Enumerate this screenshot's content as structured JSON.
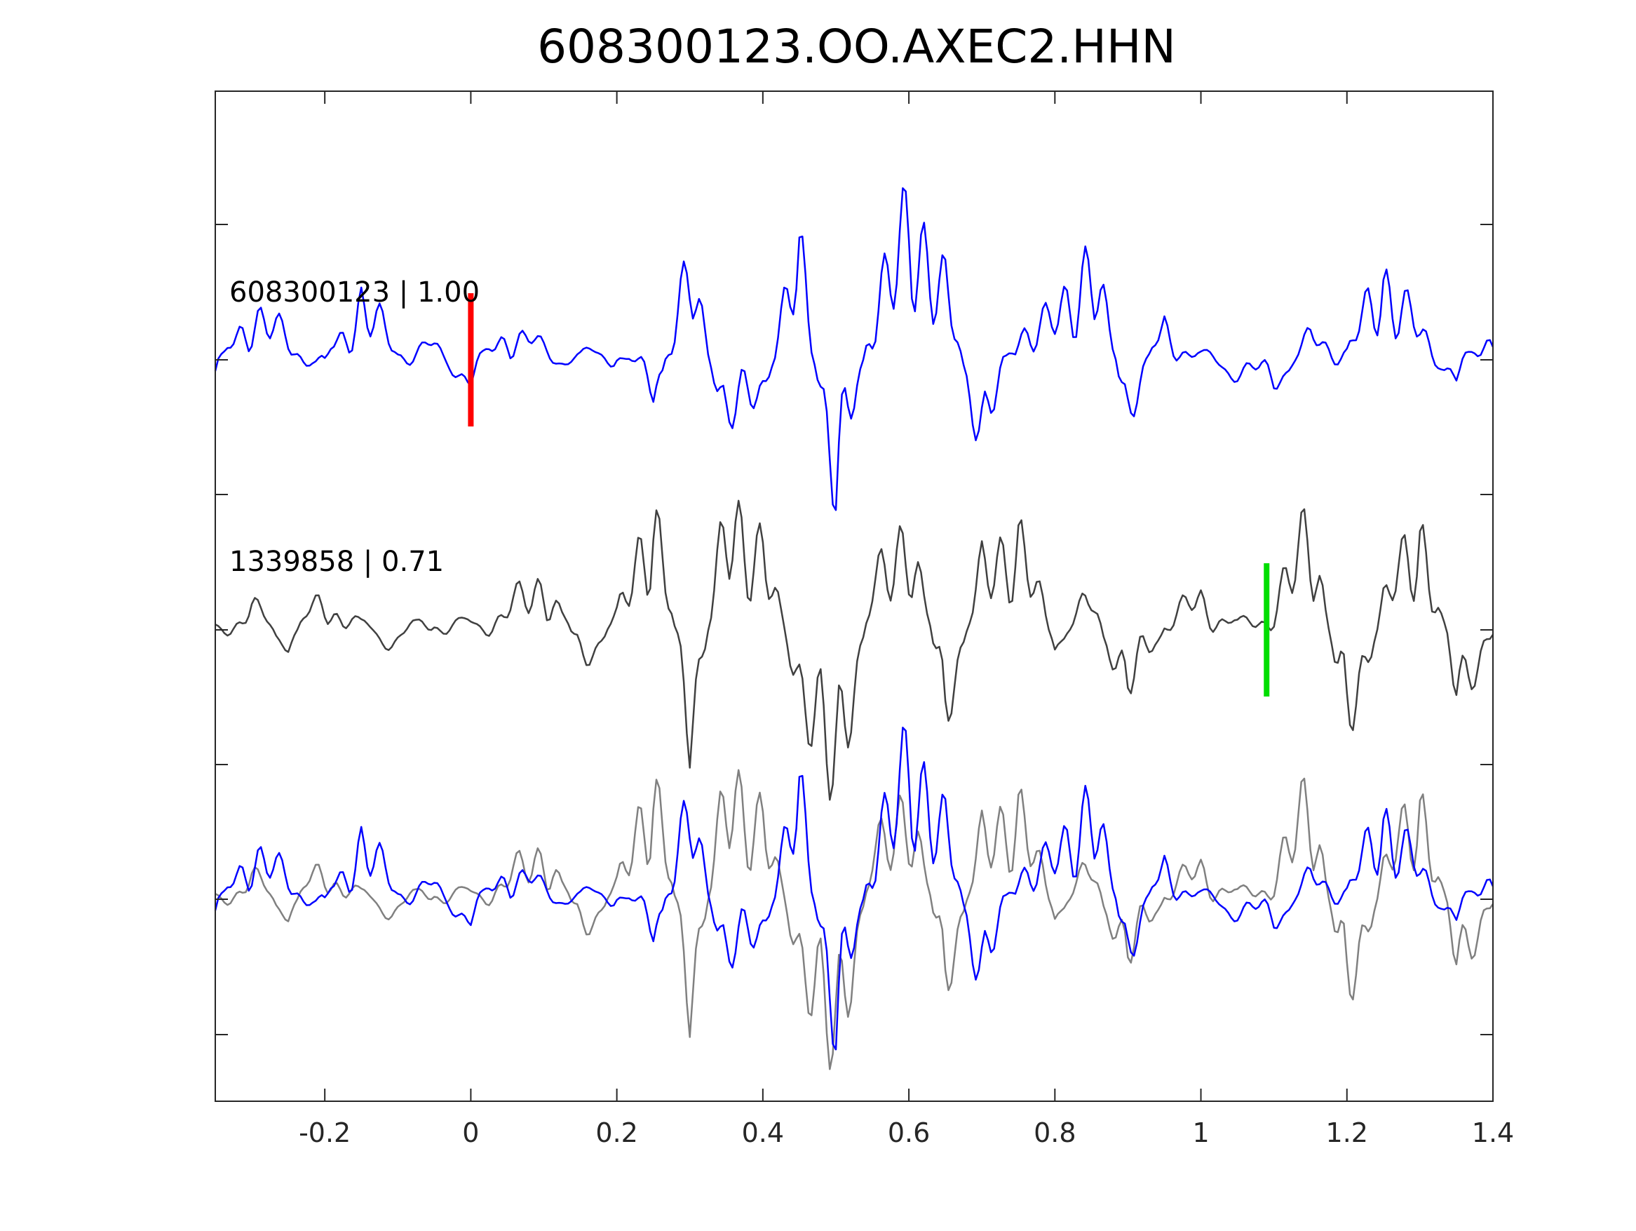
{
  "chart_data": {
    "type": "line",
    "title": "608300123.OO.AXEC2.HHN",
    "xlim": [
      -0.35,
      1.4
    ],
    "x_ticks": [
      -0.2,
      0,
      0.2,
      0.4,
      0.6,
      0.8,
      1,
      1.2,
      1.4
    ],
    "x_tick_labels": [
      "-0.2",
      "0",
      "0.2",
      "0.4",
      "0.6",
      "0.8",
      "1",
      "1.2",
      "1.4"
    ],
    "y_tick_labels": [],
    "grid": false,
    "traces": [
      {
        "id": "608300123",
        "label": "608300123 | 1.00",
        "color": "#0000ff"
      },
      {
        "id": "1339858",
        "label": "1339858 | 0.71",
        "color": "#404040"
      }
    ],
    "overlay": {
      "colors": [
        "#0000ff",
        "#808080"
      ]
    },
    "picks": [
      {
        "x": 0.0,
        "color": "#ff0000",
        "trace": "608300123"
      },
      {
        "x": 1.09,
        "color": "#00dd00",
        "trace": "1339858"
      }
    ],
    "x": [
      -0.35,
      -0.3,
      -0.25,
      -0.2,
      -0.15,
      -0.1,
      -0.05,
      0.0,
      0.05,
      0.1,
      0.15,
      0.2,
      0.25,
      0.3,
      0.35,
      0.4,
      0.45,
      0.5,
      0.55,
      0.6,
      0.65,
      0.7,
      0.75,
      0.8,
      0.85,
      0.9,
      0.95,
      1.0,
      1.05,
      1.1,
      1.15,
      1.2,
      1.25,
      1.3,
      1.35,
      1.4
    ],
    "series": [
      {
        "name": "608300123",
        "values": [
          -0.2,
          0.5,
          0.2,
          -0.1,
          0.6,
          0.1,
          0.1,
          -0.2,
          0.3,
          0.1,
          0.0,
          0.1,
          -0.3,
          0.9,
          -0.6,
          -0.3,
          1.1,
          -1.3,
          0.5,
          1.4,
          0.7,
          -0.8,
          0.3,
          0.4,
          1.0,
          -0.5,
          0.3,
          0.0,
          -0.1,
          -0.2,
          0.2,
          0.1,
          0.8,
          0.3,
          -0.2,
          0.3
        ]
      },
      {
        "name": "1339858",
        "values": [
          0.0,
          0.2,
          -0.1,
          0.3,
          0.0,
          -0.1,
          0.1,
          0.0,
          0.2,
          0.5,
          -0.3,
          0.1,
          1.2,
          -1.0,
          1.1,
          0.8,
          -0.6,
          -1.5,
          0.4,
          1.0,
          -0.8,
          0.6,
          0.9,
          -0.1,
          0.3,
          -0.6,
          0.1,
          0.3,
          0.0,
          0.2,
          1.1,
          -1.0,
          0.3,
          1.0,
          -0.6,
          -0.1
        ]
      }
    ]
  }
}
